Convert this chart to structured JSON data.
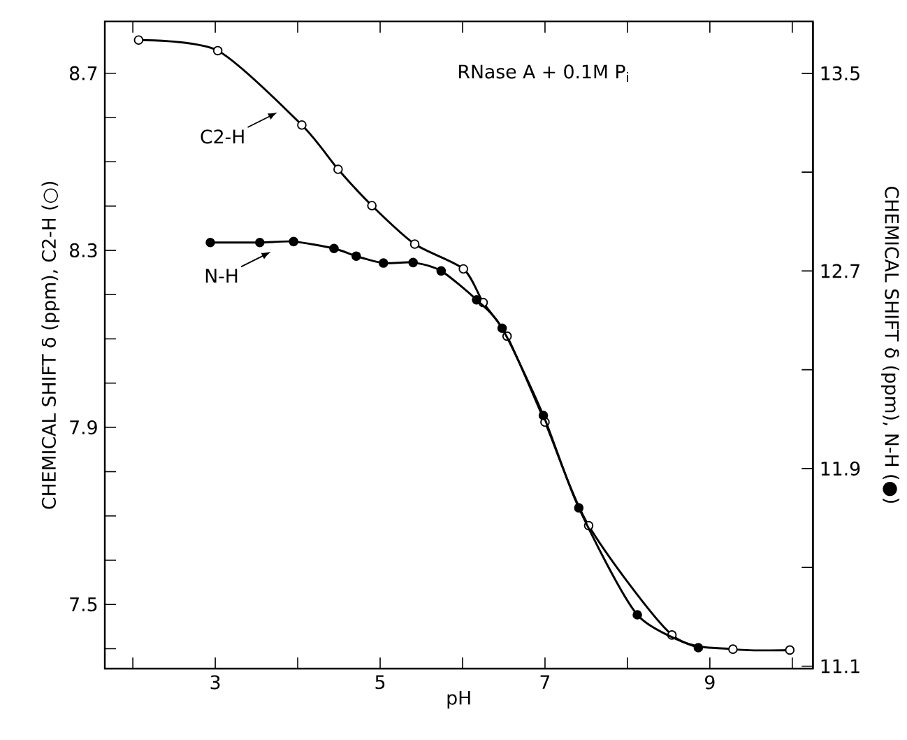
{
  "chart_data": {
    "type": "line",
    "xlabel": "pH",
    "ylabel": "CHEMICAL SHIFT δ (ppm), C2-H (○)",
    "y2label": "CHEMICAL SHIFT δ (ppm), N-H (●)",
    "annotations": [
      "RNase A + 0.1M P$_{i}$",
      {
        "text": "C2-H",
        "x": 3.8,
        "y": 8.62
      },
      {
        "text": "N-H",
        "x": 3.72,
        "y": 8.305
      }
    ],
    "xlim": [
      1.66,
      10.25
    ],
    "xticks": [
      {
        "value": 2,
        "label": null
      },
      3,
      {
        "value": 4,
        "label": null
      },
      5,
      {
        "value": 6,
        "label": null
      },
      7,
      {
        "value": 8,
        "label": null
      },
      9,
      {
        "value": 10,
        "label": null
      }
    ],
    "ylim": [
      7.355,
      8.817
    ],
    "yticks": [
      {
        "value": 7.4,
        "label": null
      },
      7.5,
      {
        "value": 7.6,
        "label": null
      },
      {
        "value": 7.7,
        "label": null
      },
      {
        "value": 7.8,
        "label": null
      },
      7.9,
      {
        "value": 8.0,
        "label": null
      },
      {
        "value": 8.1,
        "label": null
      },
      {
        "value": 8.2,
        "label": null
      },
      8.3,
      {
        "value": 8.4,
        "label": null
      },
      {
        "value": 8.5,
        "label": null
      },
      {
        "value": 8.6,
        "label": null
      },
      8.7
    ],
    "y2lim": [
      11.09,
      13.71
    ],
    "y2ticks": [
      11.1,
      {
        "value": 11.5,
        "label": null
      },
      11.9,
      {
        "value": 12.3,
        "label": null
      },
      12.7,
      {
        "value": 13.1,
        "label": null
      },
      13.5
    ],
    "marker": "circle",
    "line_style": "solid",
    "series": [
      {
        "color": "#000000",
        "x": [
          2.07,
          3.03,
          4.05,
          4.49,
          4.9,
          5.42,
          6.01,
          6.25,
          6.54,
          7.0,
          7.53,
          8.54,
          9.28,
          9.97
        ],
        "values": [
          8.775,
          8.751,
          8.583,
          8.483,
          8.401,
          8.314,
          8.258,
          8.182,
          8.106,
          7.912,
          7.678,
          7.431,
          7.399,
          7.397
        ]
      },
      {
        "color": "#000000",
        "axis": "y2",
        "x": [
          2.94,
          3.54,
          3.95,
          4.44,
          4.71,
          5.04,
          5.4,
          5.74,
          6.17,
          6.48,
          6.98,
          7.41,
          8.12,
          8.86
        ],
        "values": [
          12.815,
          12.815,
          12.819,
          12.791,
          12.76,
          12.732,
          12.734,
          12.7,
          12.583,
          12.468,
          12.115,
          11.741,
          11.308,
          11.175
        ]
      }
    ]
  }
}
